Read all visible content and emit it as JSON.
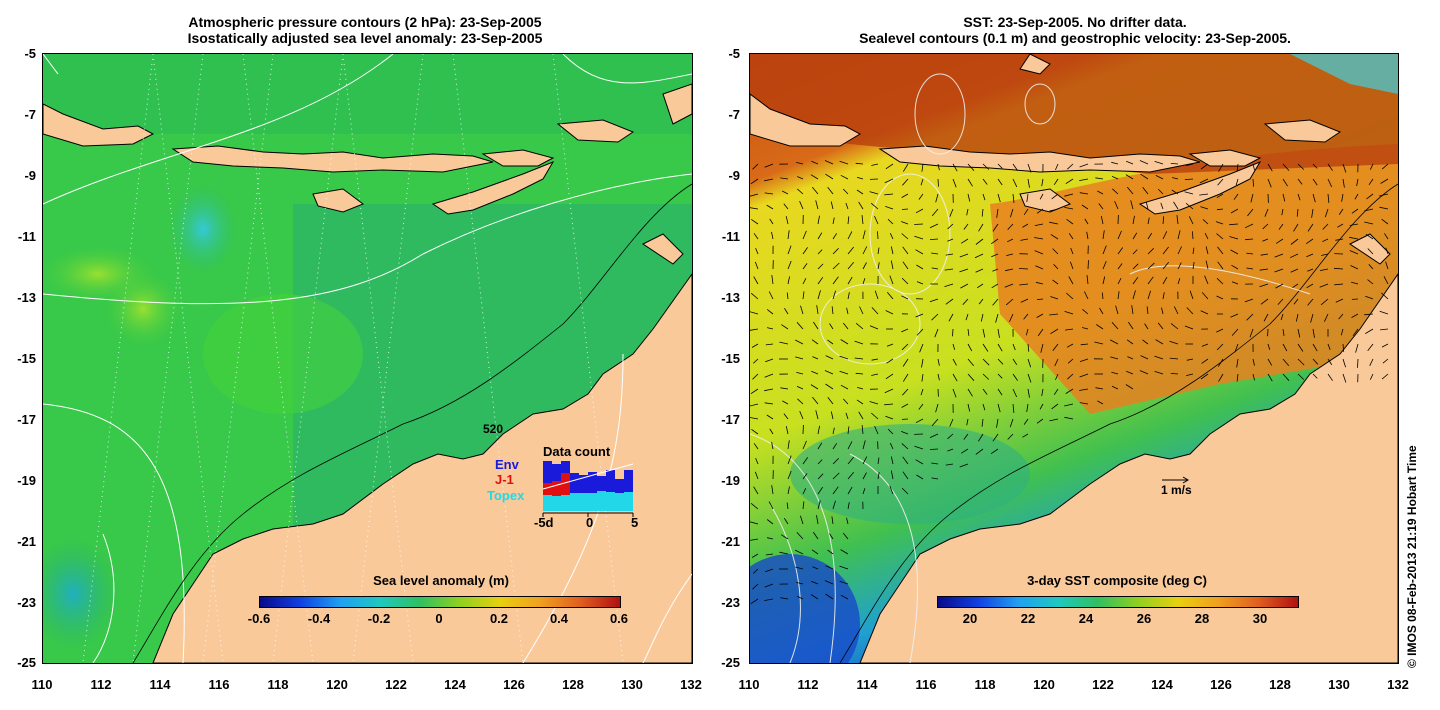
{
  "left_panel": {
    "title_line1": "Atmospheric pressure contours (2 hPa): 23-Sep-2005",
    "title_line2": "Isostatically adjusted sea level anomaly: 23-Sep-2005",
    "colorbar_title": "Sea level anomaly (m)",
    "colorbar_ticks": [
      "-0.6",
      "-0.4",
      "-0.2",
      "0",
      "0.2",
      "0.4",
      "0.6"
    ],
    "data_count": {
      "title": "Data count",
      "max_label": "520",
      "series": [
        {
          "name": "Env",
          "color": "#1a1adb"
        },
        {
          "name": "J-1",
          "color": "#e01010"
        },
        {
          "name": "Topex",
          "color": "#22d8e8"
        }
      ],
      "axis_labels": [
        "-5d",
        "0",
        "5"
      ]
    }
  },
  "right_panel": {
    "title_line1": "SST: 23-Sep-2005. No drifter data.",
    "title_line2": "Sealevel contours (0.1 m) and geostrophic velocity: 23-Sep-2005.",
    "colorbar_title": "3-day SST composite (deg C)",
    "colorbar_ticks": [
      "20",
      "22",
      "24",
      "26",
      "28",
      "30"
    ],
    "velocity_scale_label": "1 m/s"
  },
  "y_ticks": [
    "-5",
    "-7",
    "-9",
    "-11",
    "-13",
    "-15",
    "-17",
    "-19",
    "-21",
    "-23",
    "-25"
  ],
  "x_ticks": [
    "110",
    "112",
    "114",
    "116",
    "118",
    "120",
    "122",
    "124",
    "126",
    "128",
    "130",
    "132"
  ],
  "credit": "© IMOS 08-Feb-2013 21:19 Hobart Time",
  "colors": {
    "land": "#f9c99a",
    "sla_green": "#2ab84a",
    "sst_orange": "#e0731c",
    "sst_yellow": "#e8e01a"
  }
}
